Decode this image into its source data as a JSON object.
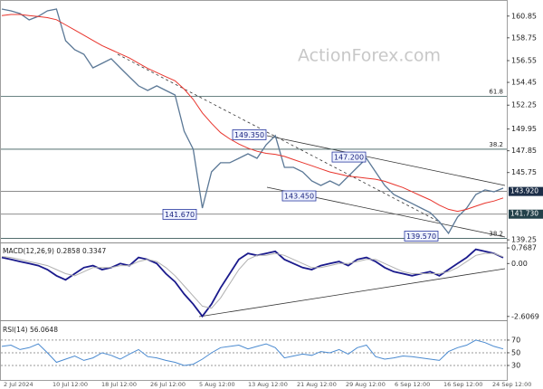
{
  "watermark": "ActionForex.com",
  "xlabels": [
    "2 Jul 2024",
    "10 Jul 12:00",
    "18 Jul 12:00",
    "26 Jul 12:00",
    "5 Aug 12:00",
    "13 Aug 12:00",
    "21 Aug 12:00",
    "29 Aug 12:00",
    "6 Sep 12:00",
    "16 Sep 12:00",
    "24 Sep 12:00"
  ],
  "chart_data": [
    {
      "type": "line",
      "ylim": [
        139.0,
        162.4
      ],
      "yticks": [
        139.25,
        145.75,
        147.85,
        149.95,
        152.25,
        154.45,
        156.55,
        158.75,
        160.85
      ],
      "grid": false,
      "fib_levels": [
        {
          "value": 153.1,
          "label": "61.8"
        },
        {
          "value": 148.0,
          "label": "38.2"
        },
        {
          "value": 139.4,
          "label": "38.2"
        }
      ],
      "price_levels": [
        {
          "value": 143.92,
          "label": "143.920"
        },
        {
          "value": 141.73,
          "label": "141.730"
        }
      ],
      "annotations": [
        {
          "value": 149.35,
          "label": "149.350"
        },
        {
          "value": 147.2,
          "label": "147.200"
        },
        {
          "value": 143.45,
          "label": "143.450"
        },
        {
          "value": 141.67,
          "label": "141.670"
        },
        {
          "value": 139.57,
          "label": "139.570"
        }
      ],
      "series": [
        {
          "color": "#5b7896",
          "values": [
            161.53,
            161.35,
            161.09,
            160.48,
            160.83,
            161.35,
            161.53,
            158.47,
            157.6,
            157.16,
            155.85,
            156.29,
            156.73,
            155.85,
            154.98,
            154.11,
            153.67,
            154.11,
            153.67,
            153.23,
            149.74,
            147.99,
            142.32,
            145.81,
            146.69,
            146.69,
            147.12,
            147.56,
            147.12,
            148.43,
            149.31,
            146.25,
            146.25,
            145.81,
            144.94,
            144.5,
            144.94,
            144.5,
            145.38,
            146.25,
            147.12,
            145.81,
            144.5,
            143.63,
            143.19,
            142.76,
            142.32,
            141.88,
            141.01,
            139.88,
            141.45,
            142.32,
            143.63,
            144.07,
            143.89,
            144.24
          ]
        },
        {
          "color": "#e8342c",
          "values": [
            160.9,
            161.0,
            161.0,
            160.9,
            160.8,
            160.7,
            160.5,
            160.0,
            159.5,
            159.0,
            158.5,
            158.0,
            157.6,
            157.2,
            156.8,
            156.3,
            155.8,
            155.4,
            155.0,
            154.6,
            153.8,
            152.8,
            151.5,
            150.5,
            149.6,
            149.0,
            148.5,
            148.1,
            147.8,
            147.6,
            147.5,
            147.3,
            147.0,
            146.7,
            146.4,
            146.1,
            145.8,
            145.6,
            145.4,
            145.3,
            145.2,
            145.1,
            144.9,
            144.6,
            144.3,
            143.9,
            143.5,
            143.1,
            142.6,
            142.2,
            142.0,
            142.2,
            142.5,
            142.8,
            143.0,
            143.3
          ]
        }
      ]
    },
    {
      "type": "line",
      "label": "MACD(12,26,9) 0.2858 0.3347",
      "ylim": [
        -2.75,
        0.95
      ],
      "yticks": [
        -2.6069,
        {
          "value": 0,
          "label": "0.00"
        },
        0.7687
      ],
      "grid": false,
      "series": [
        {
          "color": "#1a1a8c",
          "values": [
            0.3,
            0.2,
            0.1,
            0.0,
            -0.1,
            -0.3,
            -0.6,
            -0.8,
            -0.5,
            -0.2,
            -0.1,
            -0.3,
            -0.2,
            0.0,
            -0.1,
            0.3,
            0.2,
            0.0,
            -0.5,
            -0.9,
            -1.5,
            -2.0,
            -2.6,
            -2.0,
            -1.2,
            -0.5,
            0.2,
            0.5,
            0.4,
            0.5,
            0.6,
            0.2,
            0.0,
            -0.2,
            -0.3,
            -0.1,
            0.0,
            0.1,
            -0.1,
            0.2,
            0.3,
            0.1,
            -0.2,
            -0.4,
            -0.5,
            -0.6,
            -0.5,
            -0.4,
            -0.6,
            -0.3,
            0.0,
            0.3,
            0.7,
            0.6,
            0.5,
            0.29
          ]
        },
        {
          "color": "#b0b0b0",
          "values": [
            0.35,
            0.3,
            0.2,
            0.1,
            0.0,
            -0.1,
            -0.3,
            -0.5,
            -0.6,
            -0.4,
            -0.2,
            -0.2,
            -0.2,
            -0.1,
            -0.1,
            0.1,
            0.2,
            0.1,
            -0.2,
            -0.6,
            -1.1,
            -1.6,
            -2.1,
            -2.2,
            -1.7,
            -1.0,
            -0.3,
            0.2,
            0.4,
            0.4,
            0.5,
            0.4,
            0.2,
            0.0,
            -0.2,
            -0.2,
            -0.1,
            0.0,
            0.0,
            0.1,
            0.2,
            0.2,
            0.0,
            -0.2,
            -0.4,
            -0.5,
            -0.5,
            -0.5,
            -0.5,
            -0.4,
            -0.2,
            0.1,
            0.4,
            0.5,
            0.5,
            0.33
          ]
        }
      ]
    },
    {
      "type": "line",
      "label": "RSI(14) 56.0648",
      "ylim": [
        10,
        97
      ],
      "yticks": [
        30,
        50,
        70
      ],
      "grid": true,
      "series": [
        {
          "color": "#4a8ad0",
          "values": [
            60,
            62,
            55,
            58,
            64,
            50,
            35,
            40,
            45,
            38,
            42,
            50,
            46,
            40,
            48,
            55,
            44,
            42,
            38,
            35,
            30,
            32,
            40,
            50,
            58,
            60,
            62,
            56,
            60,
            64,
            58,
            42,
            45,
            48,
            46,
            52,
            50,
            55,
            48,
            58,
            62,
            44,
            40,
            42,
            45,
            44,
            42,
            40,
            38,
            52,
            58,
            62,
            70,
            66,
            60,
            56.06
          ]
        }
      ]
    }
  ]
}
